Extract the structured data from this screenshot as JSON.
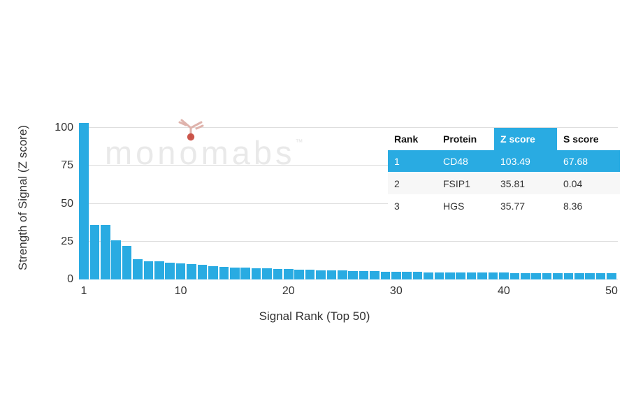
{
  "watermark": {
    "pre": "mon",
    "o": "o",
    "post": "mabs",
    "tm": "™",
    "text_color": "#e9e9e9",
    "logo_icon": "antibody-icon",
    "logo_stroke": "#dfb3ac",
    "logo_dot": "#c7453a"
  },
  "chart_data": {
    "type": "bar",
    "title": "",
    "xlabel": "Signal Rank (Top 50)",
    "ylabel": "Strength of Signal (Z score)",
    "categories": [
      1,
      2,
      3,
      4,
      5,
      6,
      7,
      8,
      9,
      10,
      11,
      12,
      13,
      14,
      15,
      16,
      17,
      18,
      19,
      20,
      21,
      22,
      23,
      24,
      25,
      26,
      27,
      28,
      29,
      30,
      31,
      32,
      33,
      34,
      35,
      36,
      37,
      38,
      39,
      40,
      41,
      42,
      43,
      44,
      45,
      46,
      47,
      48,
      49,
      50
    ],
    "values": [
      103.49,
      35.81,
      35.77,
      26,
      22,
      13.5,
      12,
      12,
      11,
      10.5,
      10,
      9.5,
      9,
      8.5,
      8,
      8,
      7.5,
      7.5,
      7,
      7,
      6.5,
      6.5,
      6,
      6,
      6,
      5.5,
      5.5,
      5.5,
      5,
      5,
      5,
      5,
      4.8,
      4.8,
      4.6,
      4.6,
      4.5,
      4.5,
      4.4,
      4.4,
      4.3,
      4.3,
      4.2,
      4.2,
      4.1,
      4.1,
      4,
      4,
      4,
      4
    ],
    "yticks": [
      0,
      25,
      50,
      75,
      100
    ],
    "xticks": [
      1,
      10,
      20,
      30,
      40,
      50
    ],
    "ylim": [
      0,
      107
    ],
    "bar_color": "#29abe2",
    "grid": "horizontal-only",
    "gridline_color": "#dedede",
    "legend": "none"
  },
  "table": {
    "headers": [
      "Rank",
      "Protein",
      "Z score",
      "S score"
    ],
    "rows": [
      {
        "rank": "1",
        "protein": "CD48",
        "z_score": "103.49",
        "s_score": "67.68"
      },
      {
        "rank": "2",
        "protein": "FSIP1",
        "z_score": "35.81",
        "s_score": "0.04"
      },
      {
        "rank": "3",
        "protein": "HGS",
        "z_score": "35.77",
        "s_score": "8.36"
      }
    ],
    "highlight_color": "#29abe2",
    "alt_row_color": "#f7f7f7"
  }
}
